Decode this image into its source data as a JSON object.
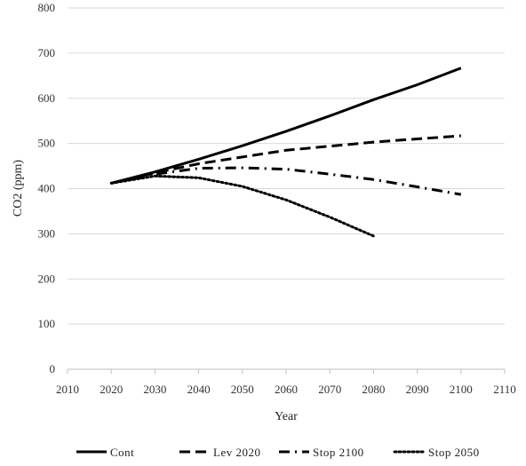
{
  "chart_data": {
    "type": "line",
    "xlabel": "Year",
    "ylabel": "CO2 (ppm)",
    "xlim": [
      2010,
      2110
    ],
    "ylim": [
      0,
      800
    ],
    "x_ticks": [
      2010,
      2020,
      2030,
      2040,
      2050,
      2060,
      2070,
      2080,
      2090,
      2100,
      2110
    ],
    "y_ticks": [
      0,
      100,
      200,
      300,
      400,
      500,
      600,
      700,
      800
    ],
    "grid": "horizontal",
    "legend_position": "bottom",
    "series": [
      {
        "name": "Cont",
        "style": "solid",
        "x": [
          2020,
          2030,
          2040,
          2050,
          2060,
          2070,
          2080,
          2090,
          2100
        ],
        "y": [
          412,
          437,
          465,
          495,
          527,
          561,
          597,
          630,
          667
        ]
      },
      {
        "name": "Lev 2020",
        "style": "dash",
        "x": [
          2020,
          2030,
          2040,
          2050,
          2060,
          2070,
          2080,
          2090,
          2100
        ],
        "y": [
          412,
          435,
          455,
          470,
          485,
          494,
          503,
          510,
          517
        ]
      },
      {
        "name": "Stop 2100",
        "style": "dashdot",
        "x": [
          2020,
          2030,
          2040,
          2050,
          2060,
          2070,
          2080,
          2090,
          2100
        ],
        "y": [
          412,
          432,
          445,
          446,
          443,
          432,
          420,
          404,
          387
        ]
      },
      {
        "name": "Stop 2050",
        "style": "dot",
        "x": [
          2020,
          2030,
          2040,
          2050,
          2060,
          2070,
          2080
        ],
        "y": [
          412,
          428,
          424,
          405,
          375,
          337,
          295
        ]
      }
    ]
  }
}
